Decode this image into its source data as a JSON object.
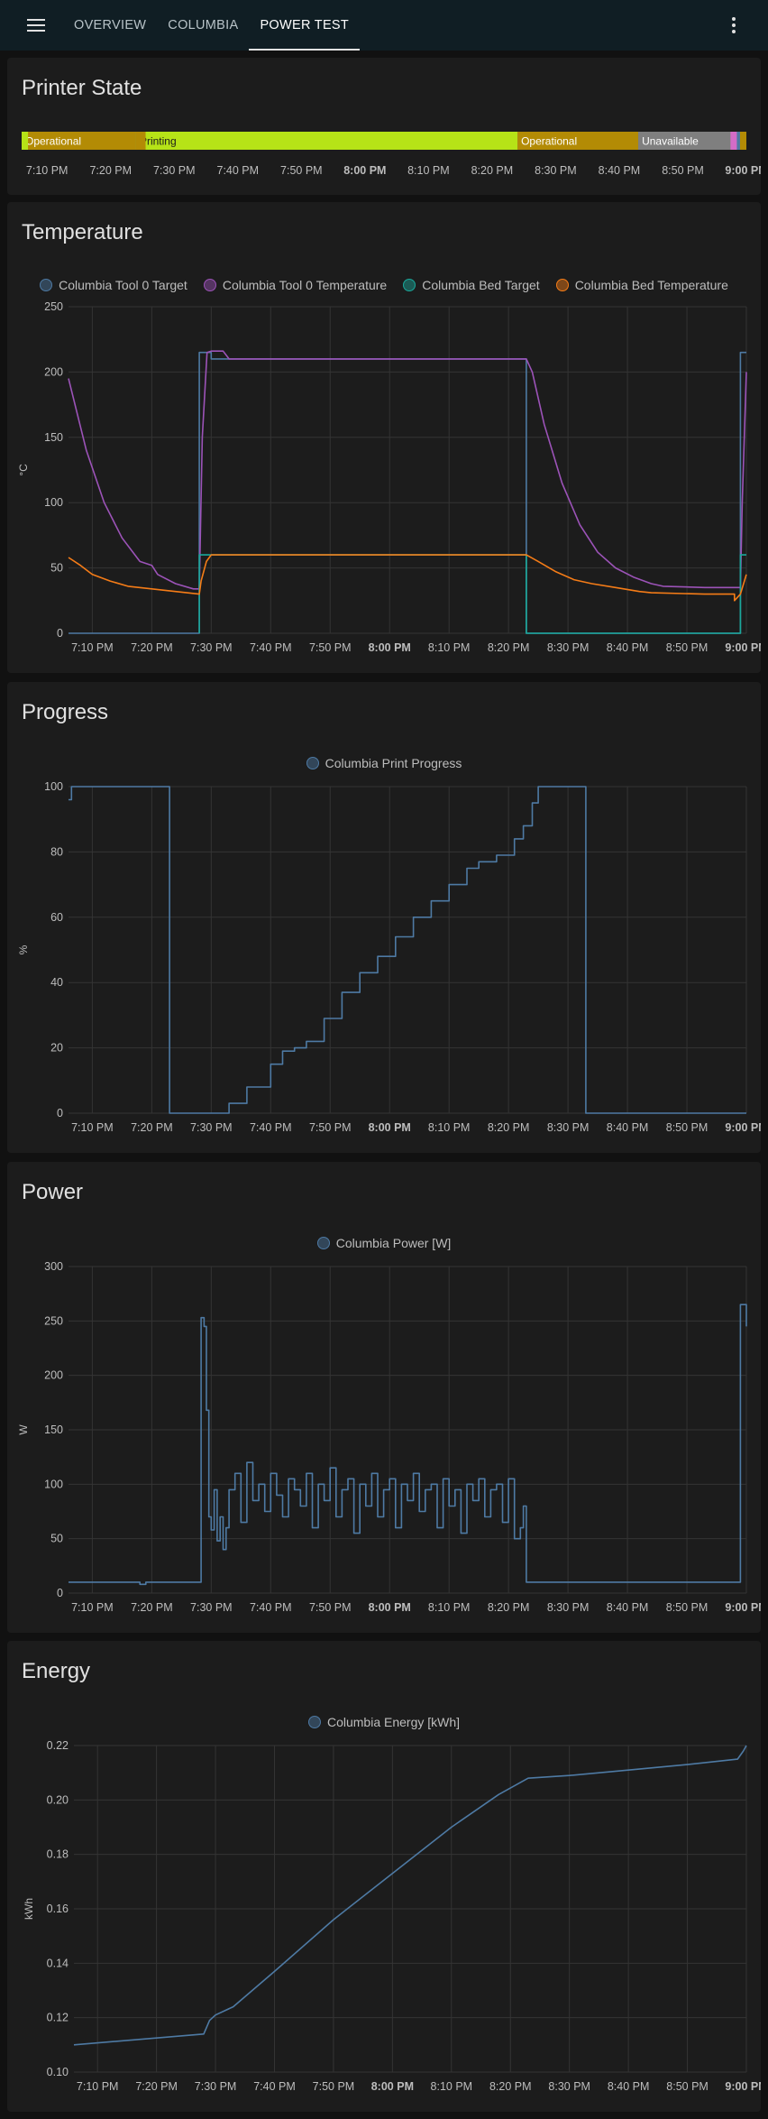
{
  "header": {
    "tabs": [
      {
        "label": "OVERVIEW",
        "active": false
      },
      {
        "label": "COLUMBIA",
        "active": false
      },
      {
        "label": "POWER TEST",
        "active": true
      }
    ],
    "menu_icon": "hamburger-menu-icon",
    "more_icon": "more-vertical-icon"
  },
  "time_ticks": [
    "7:10 PM",
    "7:20 PM",
    "7:30 PM",
    "7:40 PM",
    "7:50 PM",
    "8:00 PM",
    "8:10 PM",
    "8:20 PM",
    "8:30 PM",
    "8:40 PM",
    "8:50 PM",
    "9:00 PM"
  ],
  "printer_state": {
    "title": "Printer State",
    "segments": [
      {
        "label": "Operational",
        "start_min": 6,
        "end_min": 24,
        "color": "#b38b05"
      },
      {
        "label": "Printing",
        "start_min": 24,
        "end_min": 84,
        "color": "#b6e317"
      },
      {
        "label": "Operational",
        "start_min": 84,
        "end_min": 103,
        "color": "#b38b05"
      },
      {
        "label": "Unavailable",
        "start_min": 103,
        "end_min": 118,
        "color": "#7f7f7f"
      }
    ]
  },
  "temperature": {
    "title": "Temperature",
    "ylabel": "°C",
    "legend": [
      {
        "label": "Columbia Tool 0 Target",
        "color": "#4e7aa4"
      },
      {
        "label": "Columbia Tool 0 Temperature",
        "color": "#9c53b8"
      },
      {
        "label": "Columbia Bed Target",
        "color": "#1aa89b"
      },
      {
        "label": "Columbia Bed Temperature",
        "color": "#f57c17"
      }
    ]
  },
  "progress": {
    "title": "Progress",
    "ylabel": "%",
    "legend": [
      {
        "label": "Columbia Print Progress",
        "color": "#4e7aa4"
      }
    ]
  },
  "power": {
    "title": "Power",
    "ylabel": "W",
    "legend": [
      {
        "label": "Columbia Power [W]",
        "color": "#4e7aa4"
      }
    ]
  },
  "energy": {
    "title": "Energy",
    "ylabel": "kWh",
    "legend": [
      {
        "label": "Columbia Energy [kWh]",
        "color": "#4e7aa4"
      }
    ]
  },
  "chart_data": [
    {
      "type": "line",
      "title": "Temperature",
      "xlabel": "",
      "ylabel": "°C",
      "x_unit": "minutes after 7:00 PM",
      "ylim": [
        0,
        250
      ],
      "yticks": [
        0,
        50,
        100,
        150,
        200,
        250
      ],
      "series": [
        {
          "name": "Columbia Tool 0 Target",
          "color": "#4e7aa4",
          "points": [
            [
              6,
              0
            ],
            [
              28,
              0
            ],
            [
              28,
              215
            ],
            [
              30,
              215
            ],
            [
              30,
              210
            ],
            [
              83,
              210
            ],
            [
              83,
              0
            ],
            [
              102,
              0
            ],
            [
              113,
              0
            ],
            [
              119,
              0
            ],
            [
              119,
              215
            ],
            [
              120,
              215
            ]
          ]
        },
        {
          "name": "Columbia Tool 0 Temperature",
          "color": "#9c53b8",
          "points": [
            [
              6,
              195
            ],
            [
              9,
              140
            ],
            [
              12,
              100
            ],
            [
              15,
              73
            ],
            [
              18,
              55
            ],
            [
              20,
              52
            ],
            [
              21,
              45
            ],
            [
              24,
              38
            ],
            [
              27,
              34
            ],
            [
              28,
              34
            ],
            [
              28.5,
              150
            ],
            [
              29.3,
              215
            ],
            [
              30,
              216
            ],
            [
              32,
              216
            ],
            [
              33,
              210
            ],
            [
              50,
              210
            ],
            [
              83,
              210
            ],
            [
              84,
              200
            ],
            [
              86,
              160
            ],
            [
              89,
              115
            ],
            [
              92,
              83
            ],
            [
              95,
              62
            ],
            [
              98,
              50
            ],
            [
              101,
              43
            ],
            [
              104,
              38
            ],
            [
              106,
              36
            ],
            [
              113,
              35
            ],
            [
              119,
              35
            ],
            [
              119.3,
              100
            ],
            [
              120,
              200
            ]
          ]
        },
        {
          "name": "Columbia Bed Target",
          "color": "#1aa89b",
          "points": [
            [
              28,
              0
            ],
            [
              28,
              60
            ],
            [
              83,
              60
            ],
            [
              83,
              0
            ],
            [
              119,
              0
            ],
            [
              119,
              60
            ],
            [
              120,
              60
            ]
          ]
        },
        {
          "name": "Columbia Bed Temperature",
          "color": "#f57c17",
          "points": [
            [
              6,
              58
            ],
            [
              8,
              52
            ],
            [
              10,
              45
            ],
            [
              13,
              40
            ],
            [
              16,
              36
            ],
            [
              20,
              34
            ],
            [
              24,
              32
            ],
            [
              28,
              30
            ],
            [
              28.3,
              40
            ],
            [
              29.2,
              55
            ],
            [
              30,
              60
            ],
            [
              83,
              60
            ],
            [
              85,
              55
            ],
            [
              88,
              47
            ],
            [
              91,
              41
            ],
            [
              94,
              38
            ],
            [
              98,
              35
            ],
            [
              102,
              32
            ],
            [
              104,
              31
            ],
            [
              113,
              30
            ],
            [
              118,
              30
            ],
            [
              118,
              25
            ],
            [
              119,
              30
            ],
            [
              120,
              45
            ]
          ]
        }
      ]
    },
    {
      "type": "line",
      "title": "Progress",
      "xlabel": "",
      "ylabel": "%",
      "x_unit": "minutes after 7:00 PM",
      "ylim": [
        0,
        100
      ],
      "yticks": [
        0,
        20,
        40,
        60,
        80,
        100
      ],
      "series": [
        {
          "name": "Columbia Print Progress",
          "color": "#4e7aa4",
          "points": [
            [
              6,
              96
            ],
            [
              6.5,
              100
            ],
            [
              23,
              100
            ],
            [
              23,
              0
            ],
            [
              32,
              0
            ],
            [
              33,
              3
            ],
            [
              36,
              8
            ],
            [
              40,
              15
            ],
            [
              42,
              19
            ],
            [
              44,
              20
            ],
            [
              46,
              22
            ],
            [
              49,
              29
            ],
            [
              52,
              37
            ],
            [
              55,
              43
            ],
            [
              58,
              48
            ],
            [
              61,
              54
            ],
            [
              64,
              60
            ],
            [
              67,
              65
            ],
            [
              70,
              70
            ],
            [
              73,
              75
            ],
            [
              75,
              77
            ],
            [
              78,
              79
            ],
            [
              81,
              84
            ],
            [
              82.5,
              88
            ],
            [
              84,
              95
            ],
            [
              85,
              100
            ],
            [
              93,
              100
            ],
            [
              93,
              0
            ],
            [
              100,
              0
            ],
            [
              112,
              0
            ],
            [
              120,
              0
            ]
          ]
        }
      ]
    },
    {
      "type": "line",
      "title": "Power",
      "xlabel": "",
      "ylabel": "W",
      "x_unit": "minutes after 7:00 PM",
      "ylim": [
        0,
        300
      ],
      "yticks": [
        0,
        50,
        100,
        150,
        200,
        250,
        300
      ],
      "series": [
        {
          "name": "Columbia Power [W]",
          "color": "#4e7aa4",
          "points": [
            [
              6,
              10
            ],
            [
              17,
              10
            ],
            [
              18,
              8
            ],
            [
              19,
              10
            ],
            [
              28,
              10
            ],
            [
              28.3,
              253
            ],
            [
              28.8,
              245
            ],
            [
              29.2,
              168
            ],
            [
              29.6,
              70
            ],
            [
              30,
              58
            ],
            [
              30.5,
              95
            ],
            [
              31,
              48
            ],
            [
              31.5,
              70
            ],
            [
              32,
              40
            ],
            [
              32.5,
              60
            ],
            [
              33,
              95
            ],
            [
              34,
              110
            ],
            [
              35,
              65
            ],
            [
              36,
              120
            ],
            [
              37,
              85
            ],
            [
              38,
              100
            ],
            [
              39,
              75
            ],
            [
              40,
              110
            ],
            [
              41,
              90
            ],
            [
              42,
              70
            ],
            [
              43,
              105
            ],
            [
              44,
              95
            ],
            [
              45,
              80
            ],
            [
              46,
              110
            ],
            [
              47,
              60
            ],
            [
              48,
              100
            ],
            [
              49,
              85
            ],
            [
              50,
              115
            ],
            [
              51,
              70
            ],
            [
              52,
              95
            ],
            [
              53,
              105
            ],
            [
              54,
              55
            ],
            [
              55,
              100
            ],
            [
              56,
              80
            ],
            [
              57,
              110
            ],
            [
              58,
              70
            ],
            [
              59,
              95
            ],
            [
              60,
              105
            ],
            [
              61,
              60
            ],
            [
              62,
              100
            ],
            [
              63,
              85
            ],
            [
              64,
              110
            ],
            [
              65,
              75
            ],
            [
              66,
              95
            ],
            [
              67,
              100
            ],
            [
              68,
              60
            ],
            [
              69,
              105
            ],
            [
              70,
              80
            ],
            [
              71,
              95
            ],
            [
              72,
              55
            ],
            [
              73,
              100
            ],
            [
              74,
              85
            ],
            [
              75,
              105
            ],
            [
              76,
              70
            ],
            [
              77,
              95
            ],
            [
              78,
              100
            ],
            [
              79,
              65
            ],
            [
              80,
              105
            ],
            [
              81,
              50
            ],
            [
              82,
              60
            ],
            [
              82.5,
              80
            ],
            [
              83,
              10
            ],
            [
              100,
              10
            ],
            [
              110,
              10
            ],
            [
              118.5,
              10
            ],
            [
              119,
              265
            ],
            [
              120,
              245
            ]
          ]
        }
      ]
    },
    {
      "type": "line",
      "title": "Energy",
      "xlabel": "",
      "ylabel": "kWh",
      "x_unit": "minutes after 7:00 PM",
      "ylim": [
        0.1,
        0.22
      ],
      "yticks": [
        0.1,
        0.12,
        0.14,
        0.16,
        0.18,
        0.2,
        0.22
      ],
      "series": [
        {
          "name": "Columbia Energy [kWh]",
          "color": "#4e7aa4",
          "points": [
            [
              6,
              0.11
            ],
            [
              28,
              0.114
            ],
            [
              29,
              0.119
            ],
            [
              30,
              0.121
            ],
            [
              33,
              0.124
            ],
            [
              40,
              0.137
            ],
            [
              50,
              0.156
            ],
            [
              60,
              0.173
            ],
            [
              70,
              0.19
            ],
            [
              78,
              0.202
            ],
            [
              83,
              0.208
            ],
            [
              90,
              0.209
            ],
            [
              100,
              0.211
            ],
            [
              110,
              0.213
            ],
            [
              118.5,
              0.215
            ],
            [
              119.5,
              0.218
            ],
            [
              120,
              0.22
            ]
          ]
        }
      ]
    }
  ]
}
